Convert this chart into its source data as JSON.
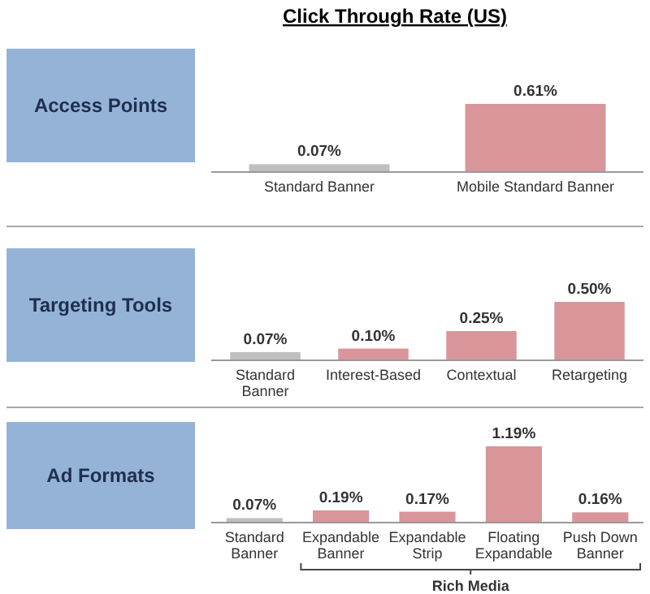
{
  "chart_data": [
    {
      "type": "bar",
      "title": "Click Through Rate (US)",
      "ylabel": "Access Points",
      "categories": [
        "Standard Banner",
        "Mobile Standard Banner"
      ],
      "values": [
        0.07,
        0.61
      ],
      "colors": [
        "#bfbfbf",
        "#d99599"
      ],
      "value_labels": [
        "0.07%",
        "0.61%"
      ],
      "tick_labels": "x"
    },
    {
      "type": "bar",
      "ylabel": "Targeting Tools",
      "categories": [
        "Standard Banner",
        "Interest-Based",
        "Contextual",
        "Retargeting"
      ],
      "values": [
        0.07,
        0.1,
        0.25,
        0.5
      ],
      "colors": [
        "#bfbfbf",
        "#d99599",
        "#d99599",
        "#d99599"
      ],
      "value_labels": [
        "0.07%",
        "0.10%",
        "0.25%",
        "0.50%"
      ],
      "tick_labels": "x"
    },
    {
      "type": "bar",
      "ylabel": "Ad Formats",
      "categories": [
        "Standard Banner",
        "Expandable Banner",
        "Expandable Strip",
        "Floating Expandable",
        "Push Down Banner"
      ],
      "values": [
        0.07,
        0.19,
        0.17,
        1.19,
        0.16
      ],
      "colors": [
        "#bfbfbf",
        "#d99599",
        "#d99599",
        "#d99599",
        "#d99599"
      ],
      "value_labels": [
        "0.07%",
        "0.19%",
        "0.17%",
        "1.19%",
        "0.16%"
      ],
      "tick_labels": "x",
      "annotations": [
        "Rich Media"
      ]
    }
  ]
}
